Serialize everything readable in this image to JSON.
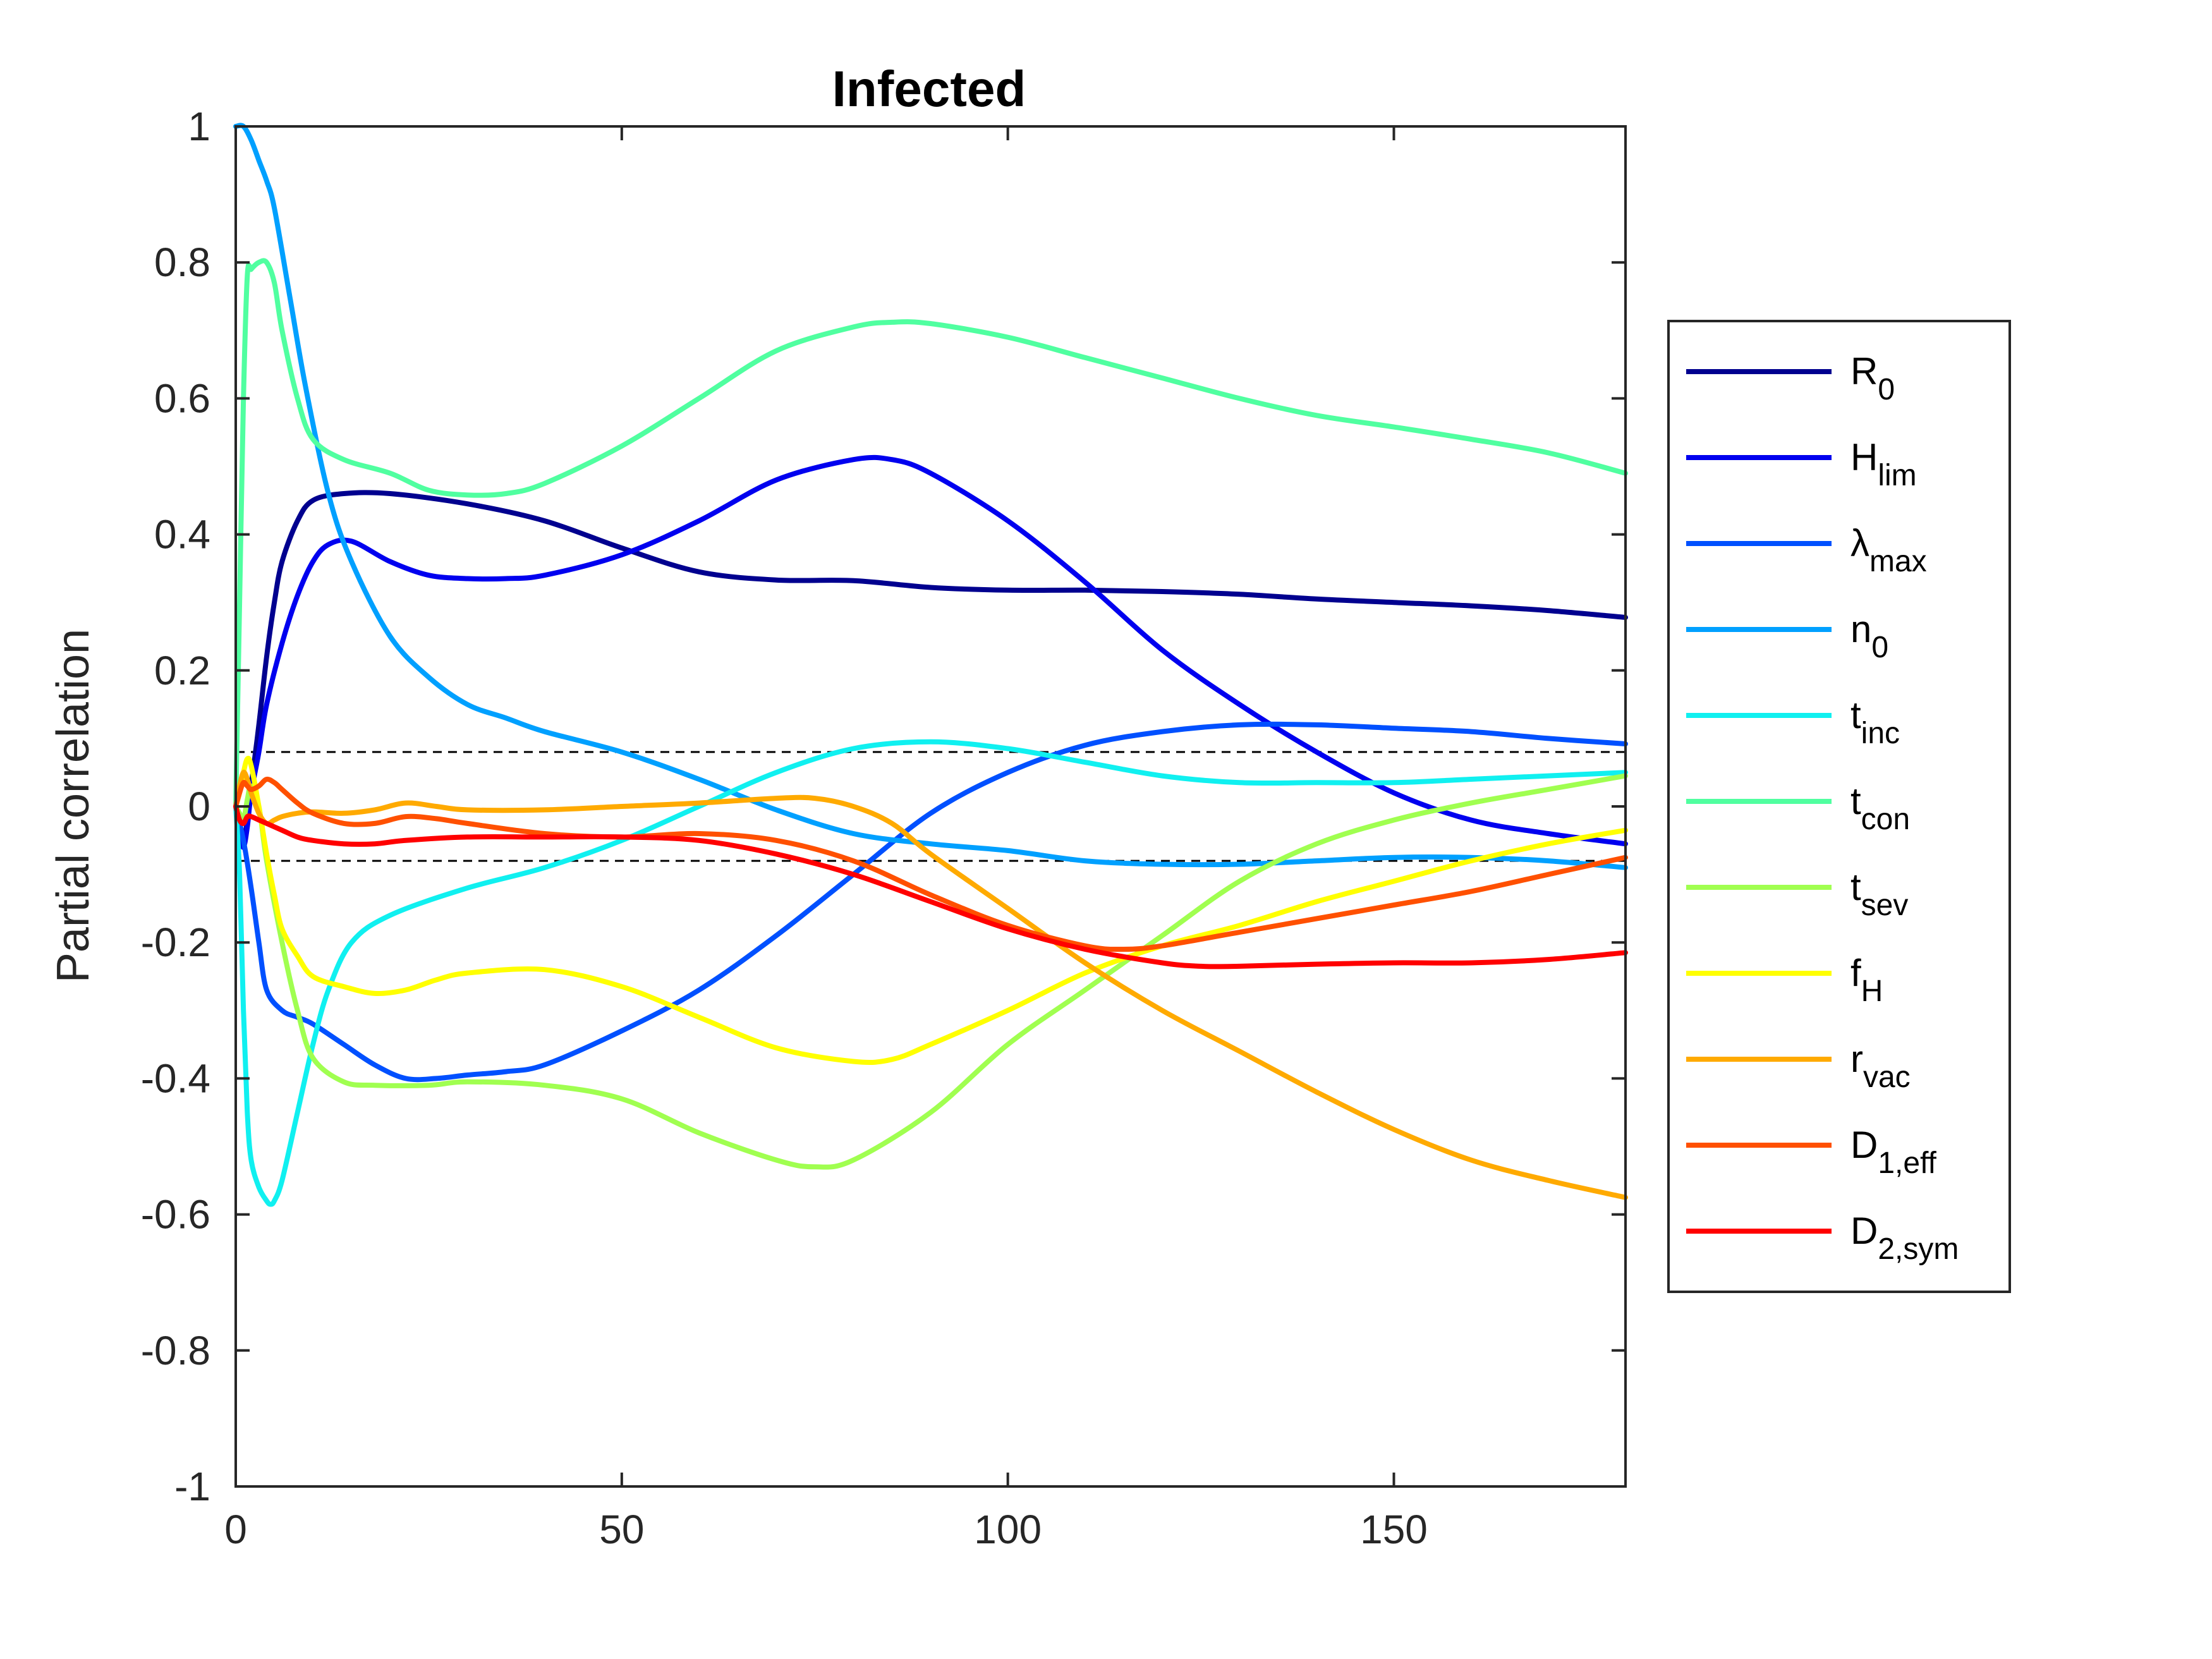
{
  "chart_data": {
    "type": "line",
    "title": "Infected",
    "xlabel": "",
    "ylabel": "Partial correlation",
    "xlim": [
      0,
      180
    ],
    "ylim": [
      -1,
      1
    ],
    "xticks": [
      "0",
      "50",
      "100",
      "150"
    ],
    "yticks": [
      "1",
      "0.8",
      "0.6",
      "0.4",
      "0.2",
      "0",
      "-0.2",
      "-0.4",
      "-0.6",
      "-0.8",
      "-1"
    ],
    "xtick_values": [
      0,
      50,
      100,
      150
    ],
    "ytick_values": [
      1,
      0.8,
      0.6,
      0.4,
      0.2,
      0,
      -0.2,
      -0.4,
      -0.6,
      -0.8,
      -1
    ],
    "grid": false,
    "legend_position": "right-outside",
    "reference_lines": [
      {
        "y": 0.08,
        "style": "dashed",
        "color": "#000000"
      },
      {
        "y": -0.08,
        "style": "dashed",
        "color": "#000000"
      }
    ],
    "series": [
      {
        "name": "R",
        "sub": "0",
        "color": "#00008f",
        "x": [
          0,
          0.5,
          1,
          1.5,
          2,
          3,
          4,
          5,
          6,
          8,
          10,
          14,
          20,
          30,
          40,
          50,
          60,
          70,
          80,
          90,
          100,
          110,
          120,
          130,
          140,
          150,
          160,
          170,
          180
        ],
        "y": [
          0,
          -0.03,
          -0.05,
          -0.02,
          0.03,
          0.12,
          0.22,
          0.3,
          0.36,
          0.42,
          0.45,
          0.46,
          0.46,
          0.445,
          0.42,
          0.38,
          0.345,
          0.333,
          0.332,
          0.322,
          0.318,
          0.318,
          0.316,
          0.312,
          0.305,
          0.3,
          0.295,
          0.288,
          0.278
        ]
      },
      {
        "name": "H",
        "sub": "lim",
        "color": "#0000ef",
        "x": [
          0,
          0.5,
          1,
          1.5,
          2,
          3,
          4,
          6,
          8,
          10,
          12,
          15,
          20,
          25,
          30,
          35,
          40,
          50,
          60,
          70,
          80,
          85,
          90,
          100,
          110,
          120,
          130,
          140,
          150,
          160,
          170,
          180
        ],
        "y": [
          0,
          -0.04,
          -0.06,
          -0.03,
          0.02,
          0.08,
          0.15,
          0.24,
          0.31,
          0.36,
          0.385,
          0.39,
          0.36,
          0.34,
          0.335,
          0.335,
          0.34,
          0.37,
          0.42,
          0.48,
          0.51,
          0.51,
          0.49,
          0.42,
          0.33,
          0.23,
          0.15,
          0.08,
          0.02,
          -0.02,
          -0.04,
          -0.055
        ]
      },
      {
        "name": "λ",
        "sub": "max",
        "color": "#0050ff",
        "x": [
          0,
          1,
          2,
          3,
          4,
          6,
          8,
          10,
          14,
          18,
          22,
          26,
          30,
          35,
          40,
          50,
          60,
          70,
          80,
          90,
          100,
          110,
          120,
          130,
          140,
          150,
          160,
          170,
          180
        ],
        "y": [
          0,
          -0.05,
          -0.12,
          -0.2,
          -0.27,
          -0.3,
          -0.31,
          -0.32,
          -0.35,
          -0.38,
          -0.4,
          -0.4,
          -0.395,
          -0.39,
          -0.38,
          -0.33,
          -0.27,
          -0.19,
          -0.1,
          -0.01,
          0.05,
          0.09,
          0.11,
          0.12,
          0.12,
          0.115,
          0.11,
          0.1,
          0.092
        ]
      },
      {
        "name": "n",
        "sub": "0",
        "color": "#00a0ff",
        "x": [
          0,
          1,
          2,
          3,
          4,
          5,
          7,
          9,
          12,
          15,
          20,
          25,
          30,
          35,
          40,
          50,
          60,
          70,
          80,
          90,
          100,
          110,
          120,
          130,
          140,
          150,
          160,
          170,
          180
        ],
        "y": [
          1,
          1,
          0.98,
          0.95,
          0.92,
          0.88,
          0.75,
          0.62,
          0.46,
          0.36,
          0.25,
          0.19,
          0.15,
          0.13,
          0.11,
          0.08,
          0.04,
          -0.005,
          -0.04,
          -0.055,
          -0.065,
          -0.08,
          -0.085,
          -0.085,
          -0.08,
          -0.075,
          -0.075,
          -0.08,
          -0.09
        ]
      },
      {
        "name": "t",
        "sub": "inc",
        "color": "#10f0f0",
        "x": [
          0,
          0.5,
          1,
          1.5,
          2,
          3,
          4,
          4.5,
          5,
          6,
          8,
          10,
          12,
          15,
          20,
          30,
          40,
          50,
          60,
          70,
          80,
          90,
          100,
          110,
          120,
          130,
          140,
          150,
          160,
          170,
          180
        ],
        "y": [
          0,
          -0.1,
          -0.3,
          -0.45,
          -0.52,
          -0.56,
          -0.58,
          -0.585,
          -0.58,
          -0.55,
          -0.45,
          -0.35,
          -0.27,
          -0.2,
          -0.16,
          -0.12,
          -0.09,
          -0.05,
          -0.0,
          0.05,
          0.085,
          0.095,
          0.085,
          0.065,
          0.045,
          0.035,
          0.035,
          0.035,
          0.04,
          0.045,
          0.05
        ]
      },
      {
        "name": "t",
        "sub": "con",
        "color": "#50ffa0",
        "x": [
          0,
          0.5,
          1,
          1.5,
          2,
          3,
          4,
          5,
          6,
          8,
          10,
          14,
          20,
          25,
          30,
          35,
          40,
          50,
          60,
          70,
          80,
          85,
          90,
          100,
          110,
          120,
          130,
          140,
          150,
          160,
          170,
          180
        ],
        "y": [
          0,
          0.3,
          0.6,
          0.78,
          0.79,
          0.8,
          0.8,
          0.77,
          0.7,
          0.6,
          0.54,
          0.51,
          0.49,
          0.465,
          0.458,
          0.46,
          0.475,
          0.53,
          0.6,
          0.67,
          0.705,
          0.712,
          0.71,
          0.69,
          0.66,
          0.63,
          0.6,
          0.575,
          0.558,
          0.54,
          0.52,
          0.49
        ]
      },
      {
        "name": "t",
        "sub": "sev",
        "color": "#a0ff50",
        "x": [
          0,
          0.5,
          1,
          1.5,
          2,
          3,
          4,
          6,
          8,
          10,
          14,
          18,
          25,
          30,
          40,
          50,
          60,
          70,
          75,
          80,
          90,
          100,
          110,
          120,
          130,
          140,
          150,
          160,
          170,
          180
        ],
        "y": [
          0,
          -0.01,
          -0.02,
          0.01,
          0.03,
          0.0,
          -0.08,
          -0.2,
          -0.3,
          -0.37,
          -0.405,
          -0.41,
          -0.41,
          -0.405,
          -0.41,
          -0.43,
          -0.48,
          -0.52,
          -0.53,
          -0.52,
          -0.45,
          -0.35,
          -0.27,
          -0.19,
          -0.11,
          -0.055,
          -0.02,
          0.005,
          0.025,
          0.045
        ]
      },
      {
        "name": "f",
        "sub": "H",
        "color": "#ffff00",
        "x": [
          0,
          0.5,
          1,
          1.5,
          2,
          3,
          4,
          5,
          6,
          8,
          10,
          14,
          18,
          22,
          26,
          30,
          40,
          50,
          60,
          70,
          80,
          85,
          90,
          100,
          110,
          120,
          130,
          140,
          150,
          160,
          170,
          180
        ],
        "y": [
          0,
          0.02,
          0.05,
          0.07,
          0.06,
          0.0,
          -0.07,
          -0.13,
          -0.18,
          -0.22,
          -0.25,
          -0.265,
          -0.275,
          -0.27,
          -0.255,
          -0.245,
          -0.24,
          -0.265,
          -0.31,
          -0.355,
          -0.375,
          -0.372,
          -0.35,
          -0.3,
          -0.245,
          -0.205,
          -0.175,
          -0.14,
          -0.11,
          -0.08,
          -0.055,
          -0.035
        ]
      },
      {
        "name": "r",
        "sub": "vac",
        "color": "#ffaa00",
        "x": [
          0,
          0.5,
          1,
          1.5,
          2,
          3,
          4,
          5,
          6,
          8,
          10,
          14,
          18,
          22,
          26,
          30,
          40,
          50,
          60,
          70,
          75,
          80,
          85,
          90,
          100,
          110,
          120,
          130,
          140,
          150,
          160,
          170,
          180
        ],
        "y": [
          0,
          0.03,
          0.05,
          0.04,
          0.02,
          -0.01,
          -0.025,
          -0.02,
          -0.015,
          -0.01,
          -0.008,
          -0.01,
          -0.005,
          0.005,
          0.0,
          -0.005,
          -0.005,
          -0.0,
          0.005,
          0.012,
          0.012,
          0.0,
          -0.025,
          -0.07,
          -0.15,
          -0.23,
          -0.3,
          -0.36,
          -0.42,
          -0.475,
          -0.52,
          -0.55,
          -0.575
        ]
      },
      {
        "name": "D",
        "sub": "1,eff",
        "color": "#ff5000",
        "x": [
          0,
          0.5,
          1,
          1.5,
          2,
          3,
          4,
          5,
          6,
          8,
          10,
          14,
          18,
          22,
          26,
          30,
          40,
          50,
          60,
          70,
          80,
          90,
          100,
          110,
          115,
          120,
          130,
          140,
          150,
          160,
          170,
          180
        ],
        "y": [
          0,
          0.02,
          0.035,
          0.03,
          0.025,
          0.03,
          0.04,
          0.035,
          0.025,
          0.005,
          -0.01,
          -0.025,
          -0.025,
          -0.015,
          -0.018,
          -0.025,
          -0.04,
          -0.045,
          -0.04,
          -0.05,
          -0.08,
          -0.13,
          -0.175,
          -0.205,
          -0.21,
          -0.205,
          -0.185,
          -0.165,
          -0.145,
          -0.125,
          -0.1,
          -0.075
        ]
      },
      {
        "name": "D",
        "sub": "2,sym",
        "color": "#ff0000",
        "x": [
          0,
          0.5,
          1,
          1.5,
          2,
          3,
          4,
          6,
          8,
          10,
          14,
          18,
          22,
          30,
          40,
          50,
          60,
          70,
          80,
          90,
          100,
          110,
          120,
          125,
          130,
          140,
          150,
          160,
          170,
          180
        ],
        "y": [
          0,
          -0.02,
          -0.025,
          -0.015,
          -0.015,
          -0.02,
          -0.025,
          -0.035,
          -0.045,
          -0.05,
          -0.055,
          -0.055,
          -0.05,
          -0.045,
          -0.045,
          -0.045,
          -0.05,
          -0.07,
          -0.1,
          -0.14,
          -0.18,
          -0.21,
          -0.23,
          -0.235,
          -0.235,
          -0.232,
          -0.23,
          -0.23,
          -0.225,
          -0.215
        ]
      }
    ]
  }
}
